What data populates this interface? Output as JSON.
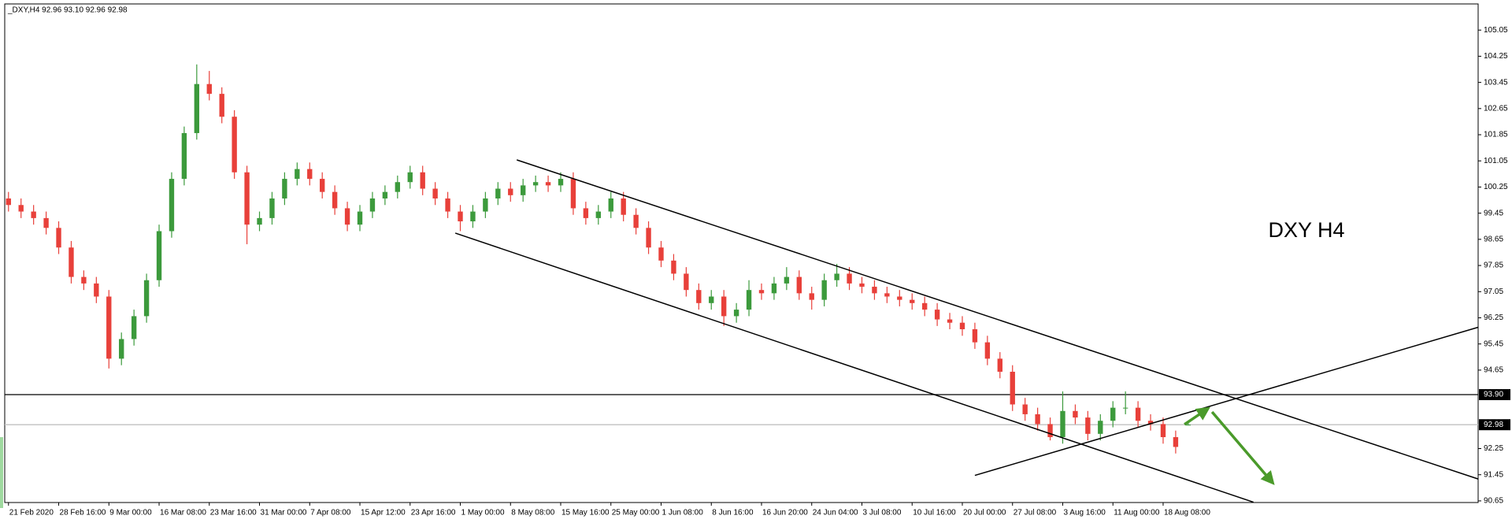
{
  "chart_data": {
    "type": "candlestick",
    "title": "_DXY,H4  92.96 93.10 92.96 92.98",
    "annotation": "DXY H4",
    "categories": [
      "21 Feb 2020",
      null,
      null,
      null,
      "28 Feb 16:00",
      null,
      null,
      null,
      "9 Mar 00:00",
      null,
      null,
      null,
      "16 Mar 08:00",
      null,
      null,
      null,
      "23 Mar 16:00",
      null,
      null,
      null,
      "31 Mar 00:00",
      null,
      null,
      null,
      "7 Apr 08:00",
      null,
      null,
      null,
      "15 Apr 12:00",
      null,
      null,
      null,
      "23 Apr 16:00",
      null,
      null,
      null,
      "1 May 00:00",
      null,
      null,
      null,
      "8 May 08:00",
      null,
      null,
      null,
      "15 May 16:00",
      null,
      null,
      null,
      "25 May 00:00",
      null,
      null,
      null,
      "1 Jun 08:00",
      null,
      null,
      null,
      "8 Jun 16:00",
      null,
      null,
      null,
      "16 Jun 20:00",
      null,
      null,
      null,
      "24 Jun 04:00",
      null,
      null,
      null,
      "3 Jul 08:00",
      null,
      null,
      null,
      "10 Jul 16:00",
      null,
      null,
      null,
      "20 Jul 00:00",
      null,
      null,
      null,
      "27 Jul 08:00",
      null,
      null,
      null,
      "3 Aug 16:00",
      null,
      null,
      null,
      "11 Aug 00:00",
      null,
      null,
      null,
      "18 Aug 08:00",
      null,
      null
    ],
    "open": [
      99.9,
      99.7,
      99.5,
      99.3,
      99.0,
      98.4,
      97.5,
      97.3,
      96.9,
      95.0,
      95.6,
      96.3,
      97.4,
      98.9,
      100.5,
      101.9,
      103.4,
      103.1,
      102.4,
      100.7,
      99.1,
      99.3,
      99.9,
      100.5,
      100.8,
      100.5,
      100.1,
      99.6,
      99.1,
      99.5,
      99.9,
      100.1,
      100.4,
      100.7,
      100.2,
      99.9,
      99.5,
      99.2,
      99.5,
      99.9,
      100.2,
      100.0,
      100.3,
      100.4,
      100.3,
      100.5,
      99.6,
      99.3,
      99.5,
      99.9,
      99.4,
      99.0,
      98.4,
      98.0,
      97.6,
      97.1,
      96.7,
      96.9,
      96.3,
      96.5,
      97.1,
      97.0,
      97.3,
      97.5,
      97.0,
      96.8,
      97.4,
      97.6,
      97.3,
      97.2,
      97.0,
      96.9,
      96.8,
      96.7,
      96.5,
      96.2,
      96.1,
      95.9,
      95.5,
      95.0,
      94.6,
      93.6,
      93.3,
      93.0,
      92.6,
      93.4,
      93.2,
      92.7,
      93.1,
      93.5,
      93.5,
      93.1,
      93.0,
      92.6,
      92.96
    ],
    "high": [
      100.1,
      99.9,
      99.7,
      99.5,
      99.2,
      98.6,
      97.7,
      97.5,
      97.1,
      95.8,
      96.5,
      97.6,
      99.1,
      100.7,
      102.1,
      104.0,
      103.8,
      103.3,
      102.6,
      100.9,
      99.5,
      100.1,
      100.7,
      101.0,
      101.0,
      100.7,
      100.3,
      99.8,
      99.7,
      100.1,
      100.3,
      100.6,
      100.9,
      100.9,
      100.4,
      100.1,
      99.7,
      99.7,
      100.1,
      100.4,
      100.4,
      100.5,
      100.6,
      100.6,
      100.7,
      100.7,
      99.8,
      99.7,
      100.1,
      100.1,
      99.6,
      99.2,
      98.6,
      98.2,
      97.8,
      97.3,
      97.1,
      97.1,
      96.7,
      97.4,
      97.3,
      97.5,
      97.8,
      97.7,
      97.2,
      97.6,
      97.9,
      97.8,
      97.5,
      97.4,
      97.2,
      97.1,
      97.0,
      96.9,
      96.7,
      96.4,
      96.3,
      96.1,
      95.7,
      95.2,
      94.8,
      93.8,
      93.5,
      93.2,
      94.0,
      93.6,
      93.4,
      93.3,
      93.7,
      94.0,
      93.7,
      93.3,
      93.2,
      92.8,
      93.1
    ],
    "low": [
      99.5,
      99.3,
      99.1,
      98.8,
      98.2,
      97.3,
      97.1,
      96.7,
      94.7,
      94.8,
      95.4,
      96.1,
      97.2,
      98.7,
      100.3,
      101.7,
      102.9,
      102.2,
      100.5,
      98.5,
      98.9,
      99.1,
      99.7,
      100.3,
      100.3,
      99.9,
      99.4,
      98.9,
      98.9,
      99.3,
      99.7,
      99.9,
      100.2,
      100.0,
      99.7,
      99.3,
      98.9,
      99.0,
      99.3,
      99.7,
      99.8,
      99.8,
      100.1,
      100.1,
      100.1,
      99.4,
      99.1,
      99.1,
      99.3,
      99.2,
      98.8,
      98.2,
      97.8,
      97.4,
      96.9,
      96.5,
      96.5,
      96.0,
      96.1,
      96.3,
      96.8,
      96.8,
      97.1,
      96.8,
      96.5,
      96.6,
      97.2,
      97.1,
      97.0,
      96.8,
      96.7,
      96.6,
      96.5,
      96.3,
      96.0,
      95.9,
      95.7,
      95.3,
      94.8,
      94.4,
      93.4,
      93.1,
      92.8,
      92.5,
      92.4,
      93.0,
      92.5,
      92.5,
      92.9,
      93.3,
      92.9,
      92.8,
      92.4,
      92.1,
      92.96
    ],
    "close": [
      99.7,
      99.5,
      99.3,
      99.0,
      98.4,
      97.5,
      97.3,
      96.9,
      95.0,
      95.6,
      96.3,
      97.4,
      98.9,
      100.5,
      101.9,
      103.4,
      103.1,
      102.4,
      100.7,
      99.1,
      99.3,
      99.9,
      100.5,
      100.8,
      100.5,
      100.1,
      99.6,
      99.1,
      99.5,
      99.9,
      100.1,
      100.4,
      100.7,
      100.2,
      99.9,
      99.5,
      99.2,
      99.5,
      99.9,
      100.2,
      100.0,
      100.3,
      100.4,
      100.3,
      100.5,
      99.6,
      99.3,
      99.5,
      99.9,
      99.4,
      99.0,
      98.4,
      98.0,
      97.6,
      97.1,
      96.7,
      96.9,
      96.3,
      96.5,
      97.1,
      97.0,
      97.3,
      97.5,
      97.0,
      96.8,
      97.4,
      97.6,
      97.3,
      97.2,
      97.0,
      96.9,
      96.8,
      96.7,
      96.5,
      96.2,
      96.1,
      95.9,
      95.5,
      95.0,
      94.6,
      93.6,
      93.3,
      93.0,
      92.6,
      93.4,
      93.2,
      92.7,
      93.1,
      93.5,
      93.5,
      93.1,
      93.0,
      92.6,
      92.3,
      92.98
    ],
    "up_color": "#3c9a3c",
    "down_color": "#e8403a",
    "xlim": [
      -0.3,
      117.1
    ],
    "ylim": [
      90.6,
      105.85
    ],
    "yticks": [
      105.05,
      104.25,
      103.45,
      102.65,
      101.85,
      101.05,
      100.25,
      99.45,
      98.65,
      97.85,
      97.05,
      96.25,
      95.45,
      94.65,
      92.25,
      91.45,
      90.65
    ],
    "hlines": [
      {
        "value": 93.9,
        "label": "93.90",
        "color": "#000000"
      },
      {
        "value": 92.98,
        "label": "92.98",
        "color": "#c0c0c0"
      }
    ],
    "trendlines": [
      {
        "x": [
          40.5,
          117.1
        ],
        "y": [
          101.08,
          91.32
        ],
        "color": "#000000"
      },
      {
        "x": [
          35.6,
          99.2
        ],
        "y": [
          98.84,
          90.61
        ],
        "color": "#000000"
      },
      {
        "x": [
          77.0,
          117.1
        ],
        "y": [
          91.43,
          95.96
        ],
        "color": "#000000"
      }
    ],
    "arrows": [
      {
        "x": [
          93.7,
          95.4
        ],
        "y": [
          92.99,
          93.43
        ],
        "color": "#4a9a2a"
      },
      {
        "x": [
          95.9,
          100.6
        ],
        "y": [
          93.37,
          91.26
        ],
        "color": "#4a9a2a"
      }
    ]
  }
}
